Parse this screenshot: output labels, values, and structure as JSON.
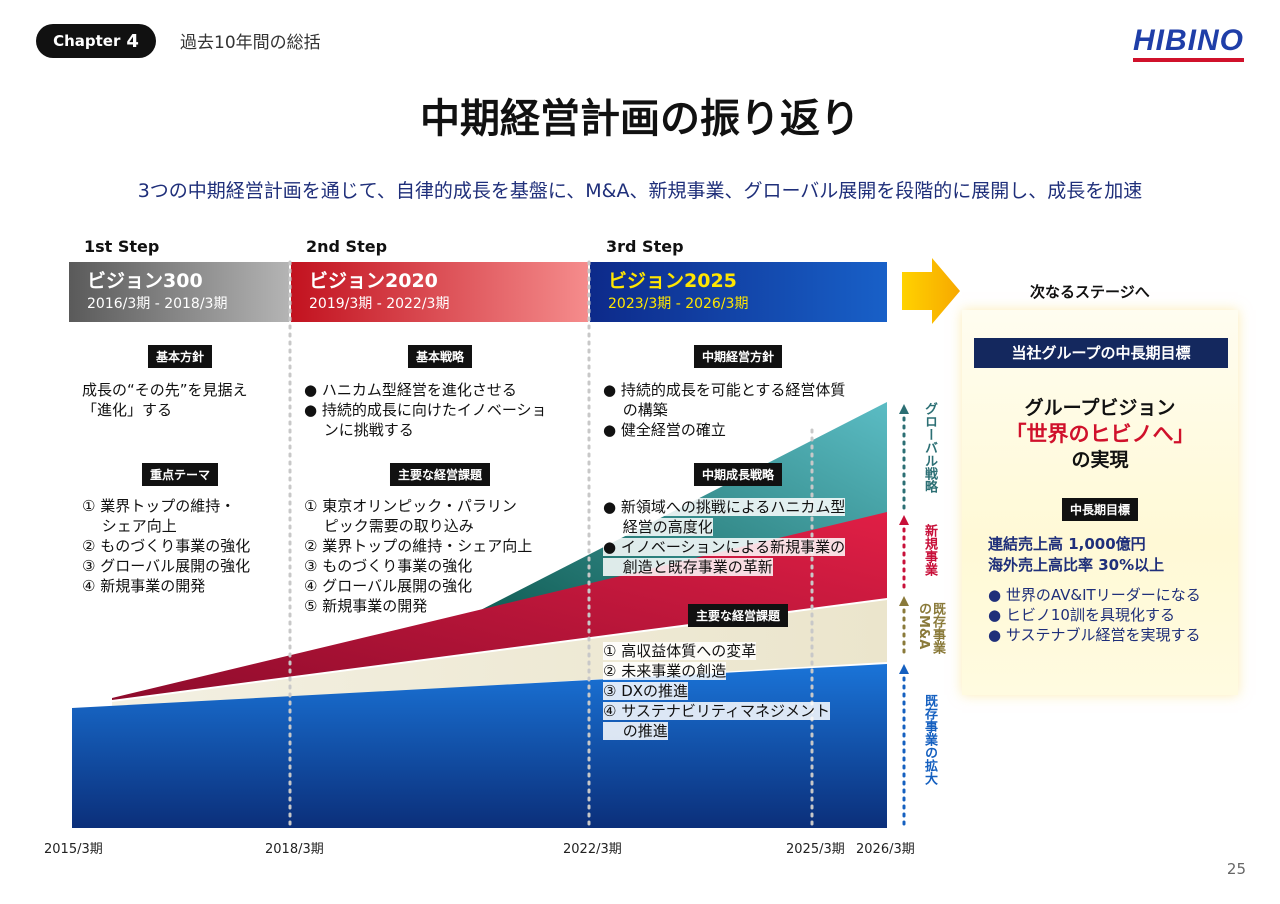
{
  "header": {
    "chapter_label": "Chapter",
    "chapter_num": "4",
    "section": "過去10年間の総括",
    "logo": "HIBINO"
  },
  "title": "中期経営計画の振り返り",
  "lead": "3つの中期経営計画を通じて、自律的成長を基盤に、M&A、新規事業、グローバル展開を段階的に展開し、成長を加速",
  "steps": [
    {
      "step": "1st Step",
      "name": "ビジョン300",
      "period": "2016/3期 - 2018/3期",
      "policy_tag": "基本方針",
      "policy": [
        "成長の“その先”を見据え",
        "「進化」する"
      ],
      "theme_tag": "重点テーマ",
      "themes": [
        "① 業界トップの維持・",
        "　 シェア向上",
        "② ものづくり事業の強化",
        "③ グローバル展開の強化",
        "④ 新規事業の開発"
      ]
    },
    {
      "step": "2nd Step",
      "name": "ビジョン2020",
      "period": "2019/3期 - 2022/3期",
      "policy_tag": "基本戦略",
      "policy": [
        "● ハニカム型経営を進化させる",
        "● 持続的成長に向けたイノベーショ",
        "　 ンに挑戦する"
      ],
      "theme_tag": "主要な経営課題",
      "themes": [
        "① 東京オリンピック・パラリン",
        "　 ピック需要の取り込み",
        "② 業界トップの維持・シェア向上",
        "③ ものづくり事業の強化",
        "④ グローバル展開の強化",
        "⑤ 新規事業の開発"
      ]
    },
    {
      "step": "3rd Step",
      "name": "ビジョン2025",
      "period": "2023/3期 - 2026/3期",
      "policy_tag": "中期経営方針",
      "policy": [
        "● 持続的成長を可能とする経営体質",
        "　 の構築",
        "● 健全経営の確立"
      ],
      "theme_tag": "中期成長戦略",
      "themes": [
        "● 新領域への挑戦によるハニカム型",
        "　 経営の高度化",
        "● イノベーションによる新規事業の",
        "　 創造と既存事業の革新"
      ],
      "issue_tag": "主要な経営課題",
      "issues": [
        "① 高収益体質への変革",
        "② 未来事業の創造",
        "③ DXの推進",
        "④ サステナビリティマネジメント",
        "　 の推進"
      ]
    }
  ],
  "axis": [
    "2015/3期",
    "2018/3期",
    "2022/3期",
    "2025/3期",
    "2026/3期"
  ],
  "layers": [
    {
      "label": "グローバル戦略",
      "color": "#3e8f94"
    },
    {
      "label": "新規事業",
      "color": "#c8103a"
    },
    {
      "label": "既存事業のM&A",
      "color": "#8a7a3a"
    },
    {
      "label": "既存事業の拡大",
      "color": "#1560c0"
    }
  ],
  "next": {
    "label": "次なるステージへ",
    "head": "当社グループの中長期目標",
    "vision_l1": "グループビジョン",
    "vision_l2": "「世界のヒビノへ」",
    "vision_l3": "の実現",
    "target_tag": "中長期目標",
    "target1": "連結売上高 1,000億円",
    "target2": "海外売上高比率 30%以上",
    "bullets": [
      "● 世界のAV&ITリーダーになる",
      "● ヒビノ10訓を具現化する",
      "● サステナブル経営を実現する"
    ]
  },
  "page_number": "25"
}
